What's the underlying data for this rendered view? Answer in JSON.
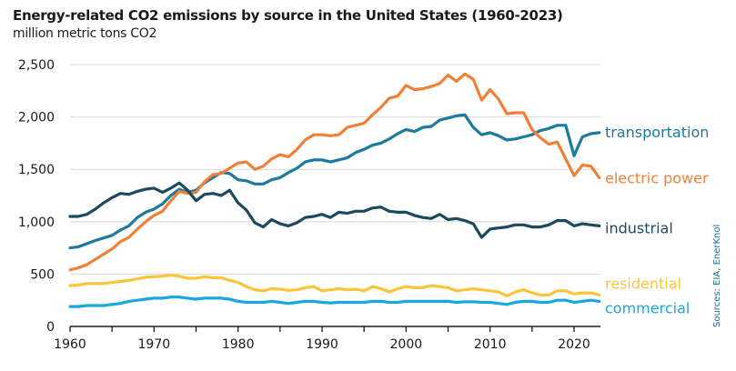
{
  "chart_data": {
    "type": "line",
    "title": "Energy-related CO2 emissions by source in the United States (1960-2023)",
    "subtitle": "million metric tons CO2",
    "source": "Sources: EIA, EnerKnol",
    "xlabel": "",
    "ylabel": "million metric tons CO2",
    "xlim": [
      1960,
      2023
    ],
    "ylim": [
      0,
      2500
    ],
    "xticks": [
      1960,
      1970,
      1980,
      1990,
      2000,
      2010,
      2020
    ],
    "yticks": [
      0,
      500,
      1000,
      1500,
      2000,
      2500
    ],
    "ytick_labels": [
      "0",
      "500",
      "1,000",
      "1,500",
      "2,000",
      "2,500"
    ],
    "grid": "horizontal",
    "legend": "direct labels at right end of lines",
    "x_start": 1960,
    "series": [
      {
        "name": "transportation",
        "color": "#1b7a9e",
        "values": [
          750,
          760,
          790,
          820,
          845,
          870,
          920,
          960,
          1040,
          1090,
          1120,
          1170,
          1250,
          1310,
          1280,
          1300,
          1370,
          1420,
          1470,
          1460,
          1400,
          1390,
          1360,
          1360,
          1400,
          1420,
          1470,
          1510,
          1570,
          1590,
          1590,
          1570,
          1590,
          1610,
          1660,
          1690,
          1730,
          1750,
          1790,
          1840,
          1880,
          1860,
          1900,
          1910,
          1970,
          1990,
          2010,
          2020,
          1900,
          1830,
          1850,
          1820,
          1780,
          1790,
          1810,
          1830,
          1870,
          1890,
          1920,
          1920,
          1630,
          1810,
          1840,
          1850
        ]
      },
      {
        "name": "electric power",
        "color": "#f08038",
        "values": [
          540,
          560,
          590,
          640,
          690,
          740,
          810,
          850,
          930,
          1000,
          1060,
          1100,
          1200,
          1290,
          1270,
          1280,
          1380,
          1450,
          1460,
          1510,
          1560,
          1570,
          1500,
          1530,
          1600,
          1640,
          1620,
          1690,
          1780,
          1830,
          1830,
          1820,
          1830,
          1900,
          1920,
          1940,
          2020,
          2090,
          2180,
          2200,
          2300,
          2260,
          2270,
          2290,
          2320,
          2400,
          2340,
          2410,
          2360,
          2160,
          2260,
          2170,
          2030,
          2040,
          2040,
          1880,
          1800,
          1740,
          1760,
          1600,
          1440,
          1540,
          1530,
          1420
        ]
      },
      {
        "name": "industrial",
        "color": "#1a4a5c",
        "values": [
          1050,
          1050,
          1070,
          1120,
          1180,
          1230,
          1270,
          1260,
          1290,
          1310,
          1320,
          1280,
          1320,
          1370,
          1300,
          1200,
          1260,
          1270,
          1250,
          1300,
          1180,
          1110,
          990,
          950,
          1020,
          980,
          960,
          990,
          1040,
          1050,
          1070,
          1040,
          1090,
          1080,
          1100,
          1100,
          1130,
          1140,
          1100,
          1090,
          1090,
          1060,
          1040,
          1030,
          1070,
          1020,
          1030,
          1010,
          980,
          850,
          930,
          940,
          950,
          970,
          970,
          950,
          950,
          970,
          1010,
          1010,
          960,
          980,
          970,
          960
        ]
      },
      {
        "name": "residential",
        "color": "#fcc33c",
        "values": [
          390,
          395,
          410,
          410,
          410,
          420,
          430,
          440,
          455,
          470,
          475,
          480,
          490,
          480,
          460,
          460,
          475,
          465,
          465,
          440,
          420,
          380,
          350,
          340,
          360,
          355,
          345,
          350,
          370,
          380,
          340,
          350,
          360,
          350,
          355,
          340,
          380,
          360,
          330,
          360,
          380,
          370,
          370,
          390,
          380,
          370,
          340,
          350,
          360,
          350,
          340,
          330,
          290,
          330,
          350,
          320,
          300,
          300,
          340,
          340,
          310,
          320,
          320,
          300
        ]
      },
      {
        "name": "commercial",
        "color": "#1aa7e0",
        "values": [
          190,
          190,
          200,
          200,
          200,
          210,
          220,
          240,
          250,
          260,
          270,
          270,
          280,
          280,
          270,
          260,
          270,
          270,
          270,
          260,
          240,
          230,
          230,
          230,
          240,
          230,
          220,
          230,
          240,
          240,
          230,
          225,
          230,
          230,
          230,
          230,
          240,
          240,
          230,
          230,
          240,
          240,
          240,
          240,
          240,
          240,
          230,
          235,
          235,
          230,
          230,
          220,
          210,
          230,
          240,
          240,
          230,
          230,
          250,
          250,
          230,
          240,
          250,
          240
        ]
      }
    ]
  }
}
